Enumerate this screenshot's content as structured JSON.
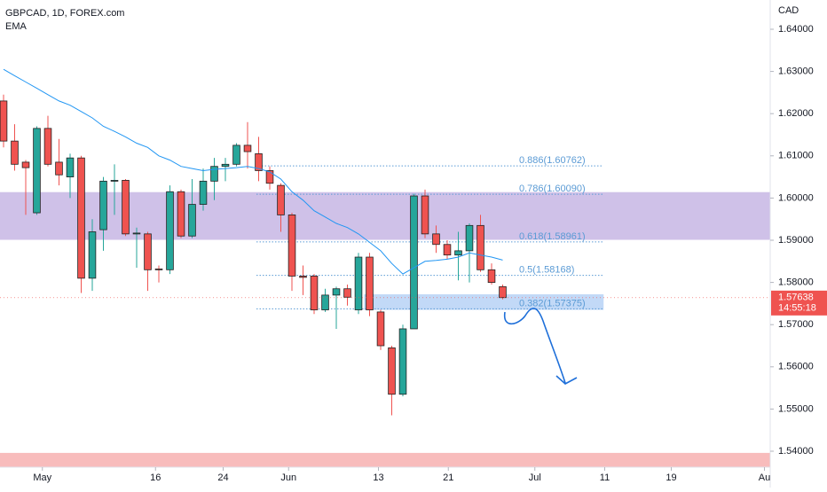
{
  "header": {
    "symbol": "GBPCAD, 1D, FOREX.com",
    "indicator": "EMA",
    "currency": "CAD"
  },
  "chart_data": {
    "type": "candlestick",
    "xlim": [
      -0.32,
      69.12
    ],
    "xticks": [
      {
        "value": 3.5,
        "label": "May"
      },
      {
        "value": 13.7,
        "label": "16"
      },
      {
        "value": 19.8,
        "label": "24"
      },
      {
        "value": 25.7,
        "label": "Jun"
      },
      {
        "value": 33.8,
        "label": "13"
      },
      {
        "value": 40.1,
        "label": "21"
      },
      {
        "value": 47.9,
        "label": "Jul"
      },
      {
        "value": 54.2,
        "label": "11"
      },
      {
        "value": 60.2,
        "label": "19"
      },
      {
        "value": 68.6,
        "label": "Au"
      }
    ],
    "ylim": [
      1.53622,
      1.64693
    ],
    "yticks": [
      {
        "value": 1.64,
        "label": "1.64000"
      },
      {
        "value": 1.63,
        "label": "1.63000"
      },
      {
        "value": 1.62,
        "label": "1.62000"
      },
      {
        "value": 1.61,
        "label": "1.61000"
      },
      {
        "value": 1.6,
        "label": "1.60000"
      },
      {
        "value": 1.59,
        "label": "1.59000"
      },
      {
        "value": 1.58,
        "label": "1.58000"
      },
      {
        "value": 1.57,
        "label": "1.57000"
      },
      {
        "value": 1.56,
        "label": "1.56000"
      },
      {
        "value": 1.55,
        "label": "1.55000"
      },
      {
        "value": 1.54,
        "label": "1.54000"
      }
    ],
    "up_color": "#26a69a",
    "down_color": "#ef5350",
    "open": [
      1.623,
      1.6135,
      1.6085,
      1.5965,
      1.6165,
      1.6085,
      1.605,
      1.6095,
      1.581,
      1.5925,
      1.604,
      1.6042,
      1.5915,
      1.5915,
      1.5832,
      1.583,
      1.6015,
      1.591,
      1.5985,
      1.604,
      1.6075,
      1.608,
      1.6125,
      1.6105,
      1.6065,
      1.603,
      1.596,
      1.5815,
      1.5815,
      1.5735,
      1.577,
      1.5785,
      1.5735,
      1.586,
      1.573,
      1.5645,
      1.5535,
      1.569,
      1.6005,
      1.5915,
      1.589,
      1.5865,
      1.5875,
      1.5935,
      1.583,
      1.579
    ],
    "high": [
      1.6245,
      1.6175,
      1.609,
      1.617,
      1.6195,
      1.614,
      1.6105,
      1.61,
      1.595,
      1.605,
      1.608,
      1.6045,
      1.593,
      1.592,
      1.584,
      1.603,
      1.602,
      1.6045,
      1.607,
      1.6095,
      1.6095,
      1.613,
      1.618,
      1.6145,
      1.6075,
      1.6035,
      1.5965,
      1.584,
      1.582,
      1.5785,
      1.579,
      1.5795,
      1.587,
      1.587,
      1.5735,
      1.565,
      1.57,
      1.601,
      1.602,
      1.5935,
      1.59,
      1.592,
      1.594,
      1.596,
      1.5845,
      1.5795
    ],
    "low": [
      1.612,
      1.6065,
      1.596,
      1.596,
      1.6075,
      1.603,
      1.6,
      1.5775,
      1.578,
      1.5875,
      1.596,
      1.591,
      1.5835,
      1.578,
      1.58,
      1.582,
      1.5905,
      1.5905,
      1.597,
      1.5995,
      1.604,
      1.6075,
      1.607,
      1.604,
      1.602,
      1.592,
      1.578,
      1.577,
      1.5725,
      1.573,
      1.569,
      1.5745,
      1.5725,
      1.572,
      1.564,
      1.5485,
      1.553,
      1.569,
      1.5905,
      1.587,
      1.5855,
      1.5805,
      1.58,
      1.5825,
      1.5795,
      1.576
    ],
    "close": [
      1.6135,
      1.608,
      1.6072,
      1.6165,
      1.608,
      1.6055,
      1.6095,
      1.581,
      1.592,
      1.604,
      1.6042,
      1.5915,
      1.5917,
      1.583,
      1.583,
      1.6015,
      1.591,
      1.5985,
      1.604,
      1.6075,
      1.608,
      1.6125,
      1.611,
      1.6065,
      1.6035,
      1.596,
      1.5815,
      1.5812,
      1.5735,
      1.577,
      1.5785,
      1.5765,
      1.586,
      1.5735,
      1.565,
      1.5535,
      1.569,
      1.6005,
      1.5915,
      1.589,
      1.5865,
      1.5875,
      1.5935,
      1.583,
      1.58,
      1.5764
    ],
    "ema": {
      "name": "EMA",
      "color": "#2196f3",
      "values": [
        1.6305,
        1.629,
        1.6275,
        1.626,
        1.6245,
        1.623,
        1.622,
        1.6205,
        1.619,
        1.617,
        1.6158,
        1.6145,
        1.613,
        1.612,
        1.61,
        1.609,
        1.6075,
        1.607,
        1.6065,
        1.6068,
        1.607,
        1.6072,
        1.6075,
        1.607,
        1.6062,
        1.6045,
        1.6015,
        1.5995,
        1.597,
        1.5955,
        1.594,
        1.593,
        1.5915,
        1.5895,
        1.5875,
        1.5845,
        1.582,
        1.5835,
        1.585,
        1.5852,
        1.5855,
        1.586,
        1.587,
        1.5865,
        1.586,
        1.5853
      ]
    },
    "fib_levels": [
      {
        "label": "0.886(1.60762)",
        "price": 1.60762,
        "start": 23
      },
      {
        "label": "0.786(1.60090)",
        "price": 1.6009,
        "start": 22.8
      },
      {
        "label": "0.618(1.58961)",
        "price": 1.58961,
        "start": 22.8
      },
      {
        "label": "0.5(1.58168)",
        "price": 1.58168,
        "start": 22.8
      },
      {
        "label": "0.382(1.57375)",
        "price": 1.57375,
        "start": 22.8
      }
    ],
    "zones": [
      {
        "low": 1.5901,
        "high": 1.6014,
        "from": -0.32,
        "to": 69.12,
        "color": "rgba(149,117,205,0.45)"
      },
      {
        "low": 1.5735,
        "high": 1.5772,
        "from": 32.5,
        "to": 54.1,
        "color": "rgba(144,186,240,0.55)"
      },
      {
        "low": 1.5363,
        "high": 1.5396,
        "from": -0.32,
        "to": 69.12,
        "color": "rgba(244,143,143,0.6)"
      }
    ],
    "last_price": 1.57638,
    "countdown": "14:55:18"
  }
}
